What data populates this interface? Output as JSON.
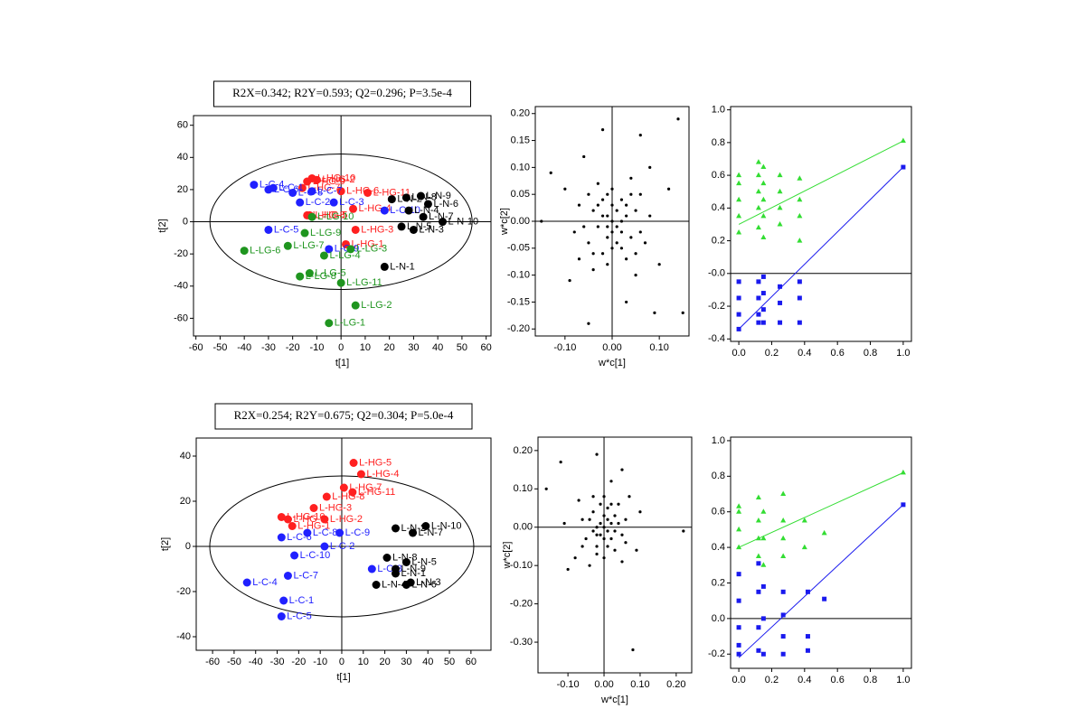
{
  "chart_data": [
    {
      "type": "scatter",
      "title": "R2X=0.342; R2Y=0.593; Q2=0.296; P=3.5e-4",
      "x_label": "t[1]",
      "y_label": "t[2]",
      "xlim": [
        -61,
        62
      ],
      "ylim": [
        -71,
        66
      ],
      "xticks": [
        -60,
        -50,
        -40,
        -30,
        -20,
        -10,
        0,
        10,
        20,
        30,
        40,
        50,
        60
      ],
      "yticks": [
        -60,
        -40,
        -20,
        0,
        20,
        40,
        60
      ],
      "zero_lines": [
        "x",
        "y"
      ],
      "ellipse": true,
      "marker": "circle",
      "series": [
        {
          "color": "#ff2020",
          "x": [
            -12,
            -14,
            -16,
            -10,
            11,
            0,
            5,
            -14,
            2,
            6,
            -13
          ],
          "values": [
            27,
            25,
            21,
            26,
            18,
            19,
            8,
            4,
            -14,
            -5,
            4
          ],
          "labels": [
            "L-HG-10",
            "L-HG-9",
            "L-HG-7",
            "L-HG-2",
            "L-HG-11",
            "L-HG-6",
            "L-HG-4",
            "L-HG-8",
            "L-HG-1",
            "L-HG-3",
            "L-HG-5"
          ]
        },
        {
          "color": "#2020ff",
          "x": [
            -36,
            -30,
            -28,
            -20,
            -17,
            -3,
            18,
            -30,
            -5,
            -12
          ],
          "values": [
            23,
            20,
            21,
            18,
            12,
            12,
            7,
            -5,
            -17,
            19
          ],
          "labels": [
            "L-C-4",
            "L-C-6",
            "L-C-1",
            "L-C-8",
            "L-C-2",
            "L-C-3",
            "L-C-10",
            "L-C-5",
            "L-C-9",
            "L-C-7"
          ]
        },
        {
          "color": "#1f951f",
          "x": [
            -40,
            -22,
            -17,
            -13,
            -7,
            4,
            0,
            6,
            -5,
            -15,
            -12
          ],
          "values": [
            -18,
            -15,
            -34,
            -32,
            -21,
            -17,
            -38,
            -52,
            -63,
            -7,
            3
          ],
          "labels": [
            "L-LG-6",
            "L-LG-7",
            "L-LG-8",
            "L-LG-5",
            "L-LG-4",
            "L-LG-3",
            "L-LG-11",
            "L-LG-2",
            "L-LG-1",
            "L-LG-9",
            "L-LG-10"
          ]
        },
        {
          "color": "#000000",
          "x": [
            18,
            21,
            27,
            33,
            36,
            28,
            34,
            42,
            25,
            30
          ],
          "values": [
            -28,
            14,
            15,
            16,
            11,
            7,
            3,
            0,
            -3,
            -5
          ],
          "labels": [
            "L-N-1",
            "L-N-2",
            "L-N-8",
            "L-N-9",
            "L-N-6",
            "L-N-4",
            "L-N-7",
            "L-N-10",
            "L-N-5",
            "L-N-3"
          ]
        }
      ]
    },
    {
      "type": "scatter",
      "x_label": "w*c[1]",
      "y_label": "w*c[2]",
      "xlim": [
        -0.163,
        0.163
      ],
      "ylim": [
        -0.213,
        0.213
      ],
      "xticks": [
        {
          "value": -0.1,
          "label": "-0.10"
        },
        {
          "value": 0,
          "label": "0.00"
        },
        {
          "value": 0.1,
          "label": "0.10"
        }
      ],
      "yticks": [
        {
          "value": 0.2,
          "label": "0.20"
        },
        {
          "value": 0.15,
          "label": "0.15"
        },
        {
          "value": 0.1,
          "label": "0.10"
        },
        {
          "value": 0.05,
          "label": "0.05"
        },
        {
          "value": 0,
          "label": "0.00"
        },
        {
          "value": -0.05,
          "label": "-0.05"
        },
        {
          "value": -0.1,
          "label": "-0.10"
        },
        {
          "value": -0.15,
          "label": "-0.15"
        },
        {
          "value": -0.2,
          "label": "-0.20"
        }
      ],
      "zero_lines": [
        "x",
        "y"
      ],
      "marker": "dot",
      "series": [
        {
          "color": "#000000",
          "x": [
            0.14,
            -0.13,
            -0.15,
            0.15,
            -0.05,
            -0.02,
            0.06,
            0.09,
            0.03,
            -0.09,
            0.12,
            -0.1,
            0.1,
            -0.07,
            0.08,
            -0.06,
            0.05,
            -0.04,
            0.07,
            -0.08,
            0.06,
            -0.05,
            0.04,
            -0.03,
            0.03,
            -0.02,
            0.05,
            -0.04,
            0.04,
            -0.05,
            0.02,
            -0.02,
            0.03,
            -0.03,
            0.01,
            -0.01,
            0.02,
            -0.02,
            0.01,
            0,
            0.01,
            -0.01,
            0,
            0,
            0.02,
            -0.01,
            0.03,
            -0.03,
            0.02,
            -0.01,
            0.04,
            -0.06,
            0.06,
            0,
            0,
            -0.07,
            0.08,
            -0.04,
            0.05,
            -0.01
          ],
          "values": [
            0.19,
            0.09,
            0,
            -0.17,
            -0.19,
            0.17,
            0.16,
            -0.17,
            -0.15,
            -0.11,
            0.06,
            0.06,
            -0.08,
            -0.07,
            0.1,
            0.12,
            -0.1,
            -0.09,
            -0.04,
            -0.02,
            0.05,
            0.05,
            0.08,
            0.07,
            -0.07,
            -0.06,
            0.02,
            0.02,
            -0.03,
            -0.04,
            0.04,
            0.04,
            0.01,
            -0.01,
            -0.04,
            -0.03,
            -0.02,
            0.01,
            0.02,
            0,
            -0.01,
            0.01,
            0.03,
            -0.02,
            0,
            -0.01,
            0.03,
            0.03,
            -0.05,
            0.05,
            0.05,
            -0.01,
            -0.02,
            0.06,
            -0.05,
            0.03,
            0.01,
            -0.06,
            -0.06,
            -0.08
          ]
        }
      ]
    },
    {
      "type": "scatter",
      "xlim": [
        -0.05,
        1.05
      ],
      "ylim": [
        -0.415,
        1.02
      ],
      "xticks": [
        {
          "value": 0,
          "label": "0.0"
        },
        0.2,
        0.4,
        0.6,
        0.8,
        {
          "value": 1,
          "label": "1.0"
        }
      ],
      "yticks": [
        {
          "value": 1,
          "label": "1.0"
        },
        0.8,
        0.6,
        0.4,
        0.2,
        {
          "value": 0,
          "label": "-0.0"
        },
        -0.2,
        -0.4
      ],
      "zero_lines": [
        "y"
      ],
      "series": [
        {
          "color": "#33dd33",
          "marker": "triangle",
          "x": [
            0,
            0,
            0,
            0,
            0,
            0.12,
            0.12,
            0.12,
            0.12,
            0.12,
            0.15,
            0.15,
            0.15,
            0.15,
            0.15,
            0.25,
            0.25,
            0.25,
            0.25,
            0.37,
            0.37,
            0.37,
            0.37,
            1
          ],
          "values": [
            0.25,
            0.35,
            0.45,
            0.55,
            0.6,
            0.28,
            0.4,
            0.5,
            0.6,
            0.68,
            0.22,
            0.35,
            0.45,
            0.55,
            0.65,
            0.3,
            0.4,
            0.5,
            0.6,
            0.2,
            0.35,
            0.45,
            0.58,
            0.81
          ]
        },
        {
          "color": "#1a1aee",
          "marker": "square",
          "x": [
            0,
            0,
            0,
            0,
            0.12,
            0.12,
            0.12,
            0.12,
            0.15,
            0.15,
            0.15,
            0.15,
            0.25,
            0.25,
            0.25,
            0.37,
            0.37,
            0.37,
            1
          ],
          "values": [
            -0.05,
            -0.15,
            -0.25,
            -0.34,
            -0.05,
            -0.15,
            -0.25,
            -0.3,
            -0.02,
            -0.12,
            -0.22,
            -0.3,
            -0.08,
            -0.18,
            -0.3,
            -0.05,
            -0.15,
            -0.3,
            0.65
          ]
        }
      ],
      "trend_lines": [
        {
          "color": "#33dd33",
          "x": [
            0,
            1
          ],
          "values": [
            0.3,
            0.81
          ]
        },
        {
          "color": "#1a1aee",
          "x": [
            0,
            1
          ],
          "values": [
            -0.34,
            0.65
          ]
        }
      ]
    },
    {
      "type": "scatter",
      "title": "R2X=0.254; R2Y=0.675; Q2=0.304; P=5.0e-4",
      "x_label": "t[1]",
      "y_label": "t[2]",
      "xlim": [
        -67.6,
        69.3
      ],
      "ylim": [
        -46,
        48
      ],
      "xticks": [
        -60,
        -50,
        -40,
        -30,
        -20,
        -10,
        0,
        10,
        20,
        30,
        40,
        50,
        60
      ],
      "yticks": [
        -40,
        -20,
        0,
        20,
        40
      ],
      "zero_lines": [
        "x",
        "y"
      ],
      "ellipse": true,
      "marker": "circle",
      "series": [
        {
          "color": "#ff2020",
          "x": [
            5.5,
            9,
            5,
            1,
            -7,
            -13,
            -28,
            -23,
            -8,
            -25
          ],
          "values": [
            37,
            32,
            24,
            26,
            22,
            17,
            13,
            9,
            12,
            12
          ],
          "labels": [
            "L-HG-5",
            "L-HG-4",
            "L-HG-11",
            "L-HG-7",
            "L-HG-8",
            "L-HG-3",
            "L-HG-10",
            "L-HG-1",
            "L-HG-2",
            "L-HG-9"
          ]
        },
        {
          "color": "#2020ff",
          "x": [
            -28,
            -16,
            -1,
            -8,
            -22,
            -25,
            -44,
            -27,
            -28,
            14
          ],
          "values": [
            4,
            6,
            6,
            0,
            -4,
            -13,
            -16,
            -24,
            -31,
            -10
          ],
          "labels": [
            "L-C-6",
            "L-C-8",
            "L-C-9",
            "L-C-2",
            "L-C-10",
            "L-C-7",
            "L-C-4",
            "L-C-1",
            "L-C-5",
            "L-C-3"
          ]
        },
        {
          "color": "#000000",
          "x": [
            25,
            39,
            33,
            21,
            30,
            25,
            25,
            32,
            30,
            16
          ],
          "values": [
            8,
            9,
            6,
            -5,
            -7,
            -10,
            -12,
            -16,
            -17,
            -17
          ],
          "labels": [
            "L-N-2",
            "L-N-10",
            "L-N-7",
            "L-N-8",
            "L-N-5",
            "L-N-9",
            "L-N-1",
            "L-N-3",
            "L-N-6",
            "L-N-4"
          ]
        }
      ]
    },
    {
      "type": "scatter",
      "x_label": "w*c[1]",
      "y_label": "w*c[2]",
      "xlim": [
        -0.183,
        0.243
      ],
      "ylim": [
        -0.38,
        0.235
      ],
      "xticks": [
        {
          "value": -0.1,
          "label": "-0.10"
        },
        {
          "value": 0,
          "label": "0.00"
        },
        {
          "value": 0.1,
          "label": "0.10"
        },
        {
          "value": 0.2,
          "label": "0.20"
        }
      ],
      "yticks": [
        {
          "value": 0.2,
          "label": "0.20"
        },
        {
          "value": 0.1,
          "label": "0.10"
        },
        {
          "value": 0,
          "label": "0.00"
        },
        {
          "value": -0.1,
          "label": "-0.10"
        },
        {
          "value": -0.2,
          "label": "-0.20"
        },
        {
          "value": -0.3,
          "label": "-0.30"
        }
      ],
      "zero_lines": [
        "x",
        "y"
      ],
      "marker": "dot",
      "series": [
        {
          "color": "#000000",
          "x": [
            -0.12,
            -0.02,
            0.05,
            -0.16,
            0.22,
            0.08,
            -0.1,
            0.02,
            0.1,
            -0.11,
            0.09,
            -0.08,
            0.07,
            -0.07,
            0.05,
            -0.04,
            0.06,
            -0.06,
            0.04,
            -0.03,
            0.03,
            -0.02,
            0.05,
            -0.05,
            0.03,
            -0.03,
            0.02,
            -0.02,
            0.01,
            0,
            0.01,
            -0.01,
            0.02,
            -0.02,
            0,
            0,
            0.01,
            -0.01,
            0.03,
            -0.03,
            0.04,
            -0.04,
            0.02,
            -0.01,
            0.01,
            -0.02,
            0.06,
            -0.06,
            0,
            0
          ],
          "values": [
            0.17,
            0.19,
            0.15,
            0.1,
            -0.01,
            -0.32,
            -0.11,
            0.12,
            0.04,
            0.01,
            -0.06,
            -0.08,
            0.08,
            0.07,
            -0.09,
            -0.1,
            0.02,
            0.02,
            0.06,
            0.08,
            -0.06,
            -0.07,
            -0.02,
            -0.03,
            0.03,
            0.04,
            -0.03,
            -0.02,
            0.05,
            0,
            -0.01,
            0.01,
            0.01,
            0,
            0.03,
            -0.03,
            0.02,
            -0.02,
            -0.01,
            -0.01,
            0.01,
            0.02,
            0.06,
            0.06,
            -0.05,
            -0.05,
            -0.04,
            -0.05,
            0.08,
            -0.08
          ]
        }
      ]
    },
    {
      "type": "scatter",
      "xlim": [
        -0.05,
        1.05
      ],
      "ylim": [
        -0.28,
        1.02
      ],
      "xticks": [
        {
          "value": 0,
          "label": "0.0"
        },
        0.2,
        0.4,
        0.6,
        0.8,
        {
          "value": 1,
          "label": "1.0"
        }
      ],
      "yticks": [
        {
          "value": 1,
          "label": "1.0"
        },
        0.8,
        0.6,
        0.4,
        0.2,
        {
          "value": 0,
          "label": "0.0"
        },
        -0.2
      ],
      "zero_lines": [
        "y"
      ],
      "series": [
        {
          "color": "#33dd33",
          "marker": "triangle",
          "x": [
            0,
            0,
            0,
            0,
            0.12,
            0.12,
            0.12,
            0.12,
            0.15,
            0.15,
            0.15,
            0.27,
            0.27,
            0.27,
            0.27,
            0.4,
            0.4,
            0.52,
            1
          ],
          "values": [
            0.4,
            0.5,
            0.6,
            0.63,
            0.35,
            0.45,
            0.55,
            0.68,
            0.3,
            0.45,
            0.6,
            0.35,
            0.45,
            0.55,
            0.7,
            0.4,
            0.55,
            0.48,
            0.82
          ]
        },
        {
          "color": "#1a1aee",
          "marker": "square",
          "x": [
            0,
            0,
            0,
            0,
            0,
            0.12,
            0.12,
            0.12,
            0.12,
            0.15,
            0.15,
            0.15,
            0.27,
            0.27,
            0.27,
            0.27,
            0.42,
            0.42,
            0.42,
            0.52,
            1
          ],
          "values": [
            0.25,
            0.1,
            -0.05,
            -0.15,
            -0.2,
            0.31,
            0.15,
            -0.05,
            -0.18,
            0.18,
            0,
            -0.2,
            0.15,
            0.02,
            -0.1,
            -0.2,
            0.15,
            -0.1,
            -0.18,
            0.11,
            0.64
          ]
        }
      ],
      "trend_lines": [
        {
          "color": "#33dd33",
          "x": [
            0,
            1
          ],
          "values": [
            0.4,
            0.82
          ]
        },
        {
          "color": "#1a1aee",
          "x": [
            0,
            1
          ],
          "values": [
            -0.22,
            0.64
          ]
        }
      ]
    }
  ]
}
